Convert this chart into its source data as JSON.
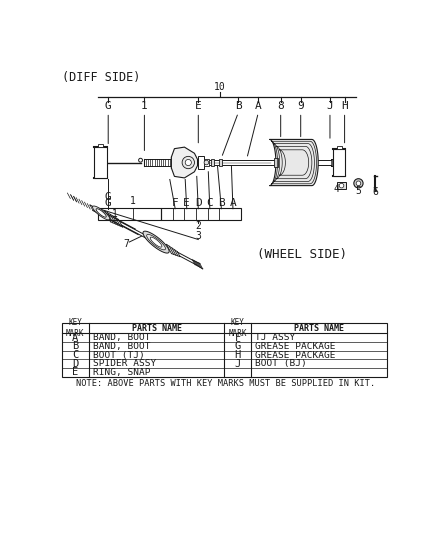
{
  "title": "(DIFF SIDE)",
  "wheel_side_label": "(WHEEL SIDE)",
  "background_color": "#ffffff",
  "line_color": "#1a1a1a",
  "font_family": "monospace",
  "parts_table": {
    "left_rows": [
      [
        "A",
        "BAND, BOOT"
      ],
      [
        "B",
        "BAND, BOOT"
      ],
      [
        "C",
        "BOOT (TJ)"
      ],
      [
        "D",
        "SPIDER ASSY"
      ],
      [
        "E",
        "RING, SNAP"
      ]
    ],
    "right_rows": [
      [
        "F",
        "TJ ASSY"
      ],
      [
        "G",
        "GREASE PACKAGE"
      ],
      [
        "H",
        "GREASE PACKAGE"
      ],
      [
        "J",
        "BOOT (BJ)"
      ],
      [
        "",
        ""
      ]
    ]
  },
  "note": "NOTE: ABOVE PARTS WITH KEY MARKS MUST BE SUPPLIED IN KIT."
}
